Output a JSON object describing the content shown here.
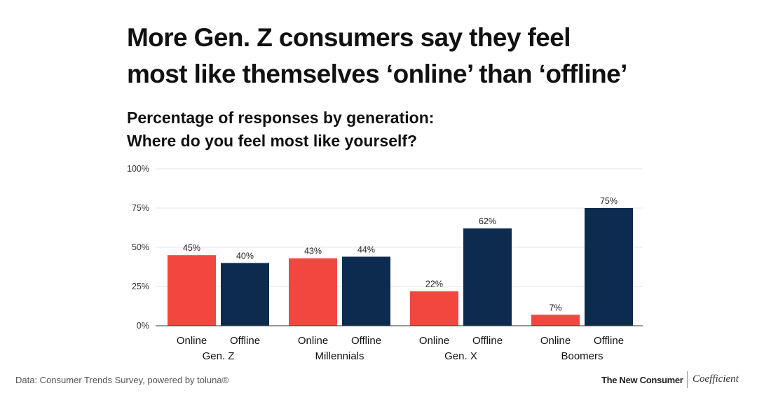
{
  "header": {
    "title_lines": [
      "More Gen. Z consumers say they feel",
      "most like themselves ‘online’ than ‘offline’"
    ],
    "subtitle_lines": [
      "Percentage of responses by generation:",
      "Where do you feel most like yourself?"
    ]
  },
  "chart_data": {
    "type": "bar",
    "groups": [
      "Gen. Z",
      "Millennials",
      "Gen. X",
      "Boomers"
    ],
    "series": [
      {
        "name": "Online",
        "values": [
          45,
          43,
          22,
          7
        ],
        "color": "#f2473f"
      },
      {
        "name": "Offline",
        "values": [
          40,
          44,
          62,
          75
        ],
        "color": "#0d2b4e"
      }
    ],
    "value_labels": {
      "Online": [
        "45%",
        "43%",
        "22%",
        "7%"
      ],
      "Offline": [
        "40%",
        "44%",
        "62%",
        "75%"
      ]
    },
    "yticks": [
      0,
      25,
      50,
      75,
      100
    ],
    "ytick_labels": [
      "0%",
      "25%",
      "50%",
      "75%",
      "100%"
    ],
    "ylim": [
      0,
      100
    ],
    "grid": true,
    "gridline_color": "#e6e6e6",
    "baseline_color": "#333333",
    "legend": "none"
  },
  "footer": {
    "source": "Data: Consumer Trends Survey, powered by toluna®",
    "brand": "The New Consumer",
    "partner": "Coefficient"
  }
}
